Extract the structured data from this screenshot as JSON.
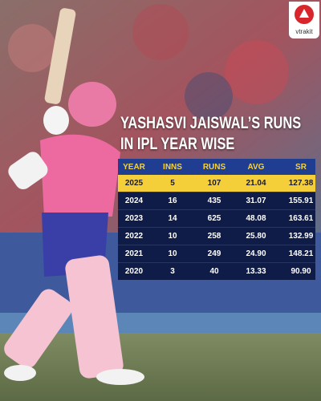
{
  "logo": "vtrakit",
  "title": {
    "line1": "YASHASVI JAISWAL’S RUNS",
    "line2": "IN IPL YEAR WISE"
  },
  "table": {
    "headers": [
      "YEAR",
      "INNS",
      "RUNS",
      "AVG",
      "SR"
    ],
    "rows": [
      [
        "2025",
        "5",
        "107",
        "21.04",
        "127.38"
      ],
      [
        "2024",
        "16",
        "435",
        "31.07",
        "155.91"
      ],
      [
        "2023",
        "14",
        "625",
        "48.08",
        "163.61"
      ],
      [
        "2022",
        "10",
        "258",
        "25.80",
        "132.99"
      ],
      [
        "2021",
        "10",
        "249",
        "24.90",
        "148.21"
      ],
      [
        "2020",
        "3",
        "40",
        "13.33",
        "90.90"
      ]
    ]
  }
}
